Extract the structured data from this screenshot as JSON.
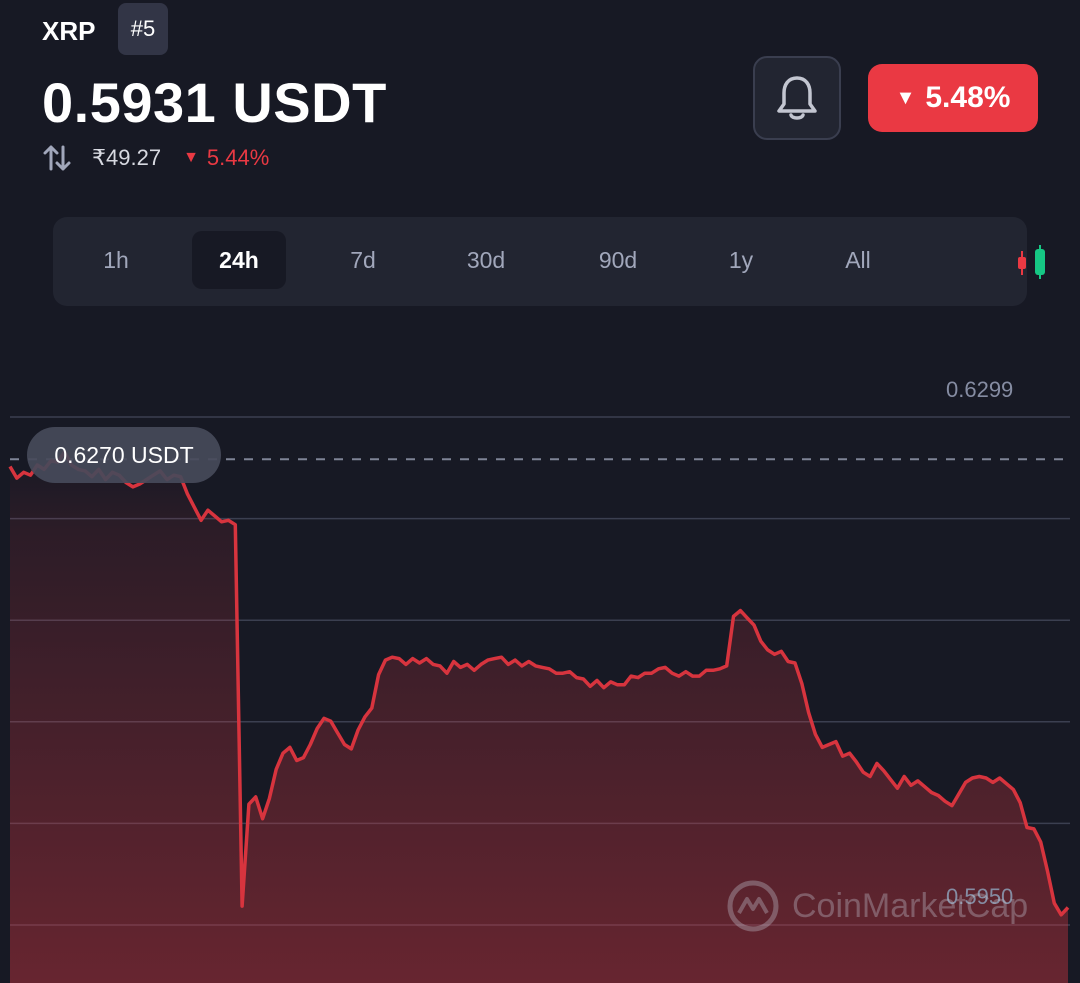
{
  "header": {
    "symbol": "XRP",
    "rank": "#5",
    "price": "0.5931 USDT",
    "inr_price": "₹49.27",
    "inr_change": "5.44%",
    "change_badge": "5.48%"
  },
  "icons": {
    "swap": "swap-arrows-icon",
    "bell": "bell-icon",
    "down": "triangle-down-icon",
    "candles": "candlestick-icon"
  },
  "tabs": [
    {
      "label": "1h",
      "active": false
    },
    {
      "label": "24h",
      "active": true
    },
    {
      "label": "7d",
      "active": false
    },
    {
      "label": "30d",
      "active": false
    },
    {
      "label": "90d",
      "active": false
    },
    {
      "label": "1y",
      "active": false
    },
    {
      "label": "All",
      "active": false
    }
  ],
  "chart": {
    "pill_label": "0.6270 USDT",
    "y_high_label": "0.6299",
    "y_low_label": "0.5950",
    "watermark": "CoinMarketCap"
  },
  "colors": {
    "background": "#171924",
    "panel": "#222531",
    "negative": "#ea3943",
    "positive": "#16c784",
    "muted": "#858ca2"
  },
  "chart_data": {
    "type": "area",
    "title": "",
    "xlabel": "",
    "ylabel": "",
    "ylim": [
      0.595,
      0.6299
    ],
    "reference_line": 0.627,
    "grid": true,
    "series": [
      {
        "values": [
          0.6265,
          0.6257,
          0.6261,
          0.6259,
          0.6266,
          0.6263,
          0.6269,
          0.6268,
          0.6275,
          0.6266,
          0.6263,
          0.6262,
          0.6258,
          0.6263,
          0.6256,
          0.6261,
          0.6259,
          0.6254,
          0.6251,
          0.6253,
          0.6256,
          0.6259,
          0.6262,
          0.6256,
          0.6259,
          0.6258,
          0.6246,
          0.6237,
          0.6228,
          0.6235,
          0.6231,
          0.6227,
          0.6228,
          0.6225,
          0.5963,
          0.6033,
          0.6038,
          0.6023,
          0.6037,
          0.6057,
          0.6068,
          0.6072,
          0.6063,
          0.6065,
          0.6074,
          0.6085,
          0.6092,
          0.609,
          0.6082,
          0.6074,
          0.6071,
          0.6084,
          0.6093,
          0.6099,
          0.6122,
          0.6132,
          0.6134,
          0.6133,
          0.6129,
          0.6133,
          0.613,
          0.6133,
          0.6129,
          0.6128,
          0.6123,
          0.6131,
          0.6127,
          0.6129,
          0.6125,
          0.6129,
          0.6132,
          0.6133,
          0.6134,
          0.6129,
          0.6132,
          0.6128,
          0.6131,
          0.6128,
          0.6127,
          0.6126,
          0.6123,
          0.6123,
          0.6124,
          0.612,
          0.6119,
          0.6114,
          0.6118,
          0.6113,
          0.6117,
          0.6115,
          0.6115,
          0.6121,
          0.612,
          0.6123,
          0.6123,
          0.6126,
          0.6127,
          0.6123,
          0.6121,
          0.6124,
          0.6121,
          0.6121,
          0.6125,
          0.6125,
          0.6126,
          0.6128,
          0.6162,
          0.6166,
          0.6161,
          0.6156,
          0.6145,
          0.6139,
          0.6136,
          0.6138,
          0.6131,
          0.613,
          0.6116,
          0.6096,
          0.6081,
          0.6072,
          0.6074,
          0.6076,
          0.6066,
          0.6068,
          0.6062,
          0.6055,
          0.6052,
          0.6061,
          0.6056,
          0.605,
          0.6044,
          0.6052,
          0.6046,
          0.6049,
          0.6045,
          0.6041,
          0.6039,
          0.6035,
          0.6032,
          0.604,
          0.6048,
          0.6051,
          0.6052,
          0.6051,
          0.6048,
          0.6051,
          0.6047,
          0.6043,
          0.6034,
          0.6017,
          0.6016,
          0.6007,
          0.5987,
          0.5965,
          0.5957,
          0.5962
        ]
      }
    ]
  }
}
